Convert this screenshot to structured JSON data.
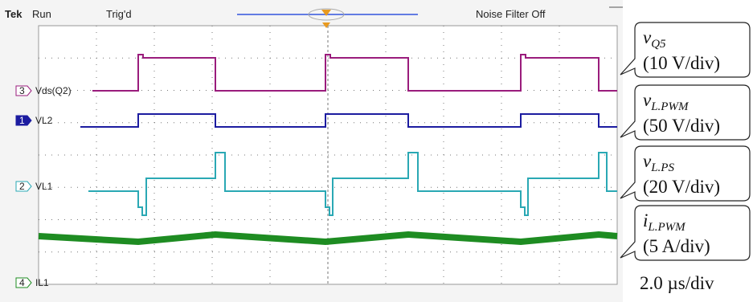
{
  "header": {
    "brand": "Tek",
    "state": "Run",
    "trigger": "Trig'd",
    "filter": "Noise Filter Off"
  },
  "channels": [
    {
      "number": "3",
      "label": "Vds(Q2)"
    },
    {
      "number": "1",
      "label": "VL2"
    },
    {
      "number": "2",
      "label": "VL1"
    },
    {
      "number": "4",
      "label": "IL1"
    }
  ],
  "callouts": [
    {
      "symbol": "v",
      "subscript": "Q5",
      "scale": "(10 V/div)"
    },
    {
      "symbol": "v",
      "subscript": "L.PWM",
      "scale": "(50 V/div)"
    },
    {
      "symbol": "v",
      "subscript": "L.PS",
      "scale": "(20 V/div)"
    },
    {
      "symbol": "i",
      "subscript": "L.PWM",
      "scale": "(5 A/div)"
    }
  ],
  "timebase": "2.0 µs/div"
}
